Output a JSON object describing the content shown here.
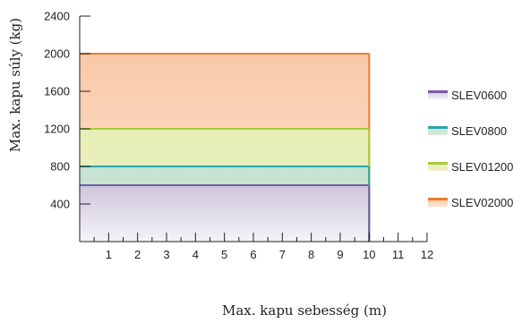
{
  "chart_data": {
    "type": "area",
    "title": "",
    "xlabel": "Max. kapu sebesség (m)",
    "ylabel": "Max. kapu súly (kg)",
    "xlim": [
      0,
      12
    ],
    "ylim": [
      0,
      2400
    ],
    "xticks": [
      1,
      2,
      3,
      4,
      5,
      6,
      7,
      8,
      9,
      10,
      11,
      12
    ],
    "yticks": [
      400,
      800,
      1200,
      1600,
      2000,
      2400
    ],
    "grid": false,
    "legend_position": "right",
    "series": [
      {
        "name": "SLEV02000",
        "max_length": 10,
        "max_weight": 2000,
        "color": "#f07b28",
        "fill_top": "#f9c9a8",
        "fill_bottom": "#fce3d2"
      },
      {
        "name": "SLEV01200",
        "max_length": 10,
        "max_weight": 1200,
        "color": "#a6ce39",
        "fill_top": "#e6efb6",
        "fill_bottom": "#f2f0cc"
      },
      {
        "name": "SLEV0800",
        "max_length": 10,
        "max_weight": 800,
        "color": "#2aa5a8",
        "fill_top": "#c4e3cf",
        "fill_bottom": "#d7e8de"
      },
      {
        "name": "SLEV0600",
        "max_length": 10,
        "max_weight": 600,
        "color": "#7b5aa6",
        "fill_top": "#cdc6dc",
        "fill_bottom": "#f5f3f8"
      }
    ],
    "legend_order": [
      "SLEV0600",
      "SLEV0800",
      "SLEV01200",
      "SLEV02000"
    ]
  }
}
